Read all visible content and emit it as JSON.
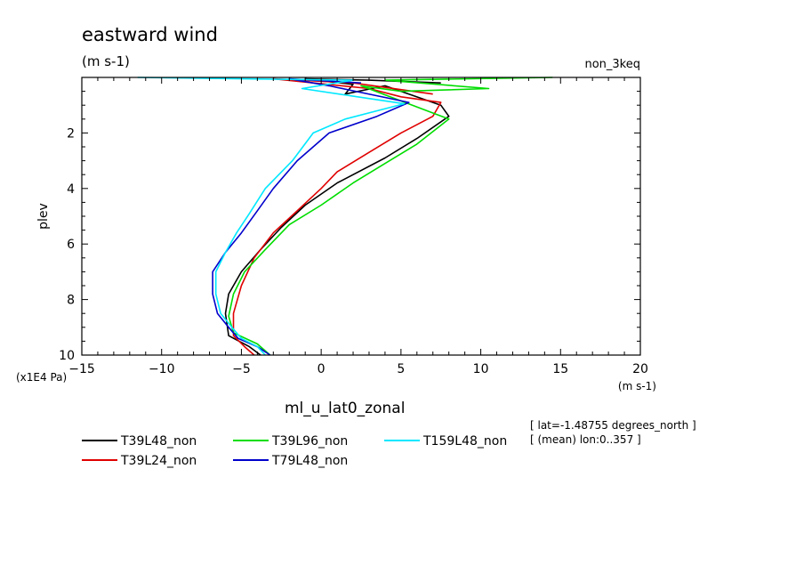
{
  "chart_data": {
    "type": "line",
    "title": "eastward wind",
    "units": "(m s-1)",
    "experiment": "non_3keq",
    "xlabel": "ml_u_lat0_zonal",
    "xunits": "(m s-1)",
    "ylabel": "plev",
    "yunits": "(x1E4 Pa)",
    "xlim": [
      -15,
      20
    ],
    "ylim": [
      10,
      0
    ],
    "x_ticks": [
      "−15",
      "−10",
      "−5",
      "0",
      "5",
      "10",
      "15",
      "20"
    ],
    "y_ticks": [
      "2",
      "4",
      "6",
      "8",
      "10"
    ],
    "info_lines": [
      "[ lat=-1.48755 degrees_north ]",
      "[ (mean) lon:0..357 ]"
    ],
    "series": [
      {
        "name": "T39L48_non",
        "color": "#000000",
        "points": [
          [
            7.5,
            0.2
          ],
          [
            3,
            0.1
          ],
          [
            -1,
            0.05
          ],
          [
            2,
            0.25
          ],
          [
            1.5,
            0.6
          ],
          [
            4,
            0.3
          ],
          [
            7.5,
            1.0
          ],
          [
            8,
            1.4
          ],
          [
            6,
            2.2
          ],
          [
            4,
            2.9
          ],
          [
            1,
            3.8
          ],
          [
            -1,
            4.6
          ],
          [
            -2.5,
            5.4
          ],
          [
            -3.8,
            6.2
          ],
          [
            -5,
            7.0
          ],
          [
            -5.8,
            7.8
          ],
          [
            -6,
            8.5
          ],
          [
            -5.8,
            9.3
          ],
          [
            -4.5,
            9.7
          ],
          [
            -3.8,
            10
          ]
        ]
      },
      {
        "name": "T39L24_non",
        "color": "#e00000",
        "points": [
          [
            7,
            0.6
          ],
          [
            2,
            0.2
          ],
          [
            -3,
            0.05
          ],
          [
            3,
            0.4
          ],
          [
            5,
            0.7
          ],
          [
            7.5,
            0.9
          ],
          [
            7,
            1.4
          ],
          [
            5,
            2.0
          ],
          [
            3,
            2.7
          ],
          [
            1,
            3.4
          ],
          [
            0,
            4.0
          ],
          [
            -1.5,
            4.8
          ],
          [
            -3,
            5.6
          ],
          [
            -4.2,
            6.5
          ],
          [
            -5,
            7.5
          ],
          [
            -5.5,
            8.5
          ],
          [
            -5.5,
            9.3
          ],
          [
            -4.8,
            9.7
          ],
          [
            -4.2,
            10
          ]
        ]
      },
      {
        "name": "T39L96_non",
        "color": "#00dd00",
        "points": [
          [
            14.5,
            0.0
          ],
          [
            4,
            0.1
          ],
          [
            10.5,
            0.4
          ],
          [
            5,
            0.5
          ],
          [
            2.5,
            0.3
          ],
          [
            8,
            1.5
          ],
          [
            6,
            2.4
          ],
          [
            4,
            3.1
          ],
          [
            2,
            3.8
          ],
          [
            0,
            4.6
          ],
          [
            -2,
            5.3
          ],
          [
            -3.5,
            6.2
          ],
          [
            -4.8,
            7.0
          ],
          [
            -5.5,
            7.8
          ],
          [
            -5.8,
            8.6
          ],
          [
            -5.5,
            9.2
          ],
          [
            -4,
            9.6
          ],
          [
            -3.2,
            10
          ]
        ]
      },
      {
        "name": "T79L48_non",
        "color": "#0000cc",
        "points": [
          [
            2.5,
            0.2
          ],
          [
            -2,
            0.05
          ],
          [
            0.5,
            0.3
          ],
          [
            5.5,
            0.9
          ],
          [
            3.5,
            1.4
          ],
          [
            0.5,
            2.0
          ],
          [
            -1.5,
            3.0
          ],
          [
            -3,
            4.0
          ],
          [
            -4,
            4.8
          ],
          [
            -5,
            5.6
          ],
          [
            -6,
            6.3
          ],
          [
            -6.8,
            7.0
          ],
          [
            -6.8,
            7.8
          ],
          [
            -6.5,
            8.5
          ],
          [
            -5.8,
            9.0
          ],
          [
            -5.2,
            9.4
          ],
          [
            -4,
            9.7
          ],
          [
            -3.2,
            10
          ]
        ]
      },
      {
        "name": "T159L48_non",
        "color": "#00e8ff",
        "points": [
          [
            -11.5,
            0.0
          ],
          [
            2,
            0.1
          ],
          [
            -1.2,
            0.4
          ],
          [
            5.2,
            0.95
          ],
          [
            1.5,
            1.5
          ],
          [
            -0.5,
            2.0
          ],
          [
            -1.8,
            3.0
          ],
          [
            -3.5,
            4.0
          ],
          [
            -4.5,
            4.9
          ],
          [
            -5.3,
            5.6
          ],
          [
            -6,
            6.3
          ],
          [
            -6.6,
            7.0
          ],
          [
            -6.6,
            7.8
          ],
          [
            -6.3,
            8.5
          ],
          [
            -5.6,
            9.0
          ],
          [
            -5,
            9.4
          ],
          [
            -4,
            9.7
          ],
          [
            -3.5,
            10
          ]
        ]
      }
    ]
  }
}
